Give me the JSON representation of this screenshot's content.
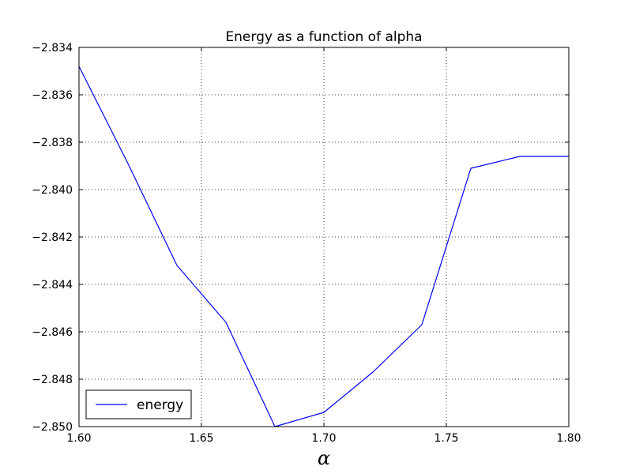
{
  "chart_data": {
    "type": "line",
    "title": "Energy as a function of alpha",
    "xlabel": "α",
    "ylabel": "",
    "xlim": [
      1.6,
      1.8
    ],
    "ylim": [
      -2.85,
      -2.834
    ],
    "xticks": [
      "1.60",
      "1.65",
      "1.70",
      "1.75",
      "1.80"
    ],
    "yticks": [
      "−2.850",
      "−2.848",
      "−2.846",
      "−2.844",
      "−2.842",
      "−2.840",
      "−2.838",
      "−2.836",
      "−2.834"
    ],
    "grid": true,
    "legend_position": "lower-left",
    "series": [
      {
        "name": "energy",
        "color": "#0000ff",
        "x": [
          1.6,
          1.62,
          1.64,
          1.66,
          1.68,
          1.7,
          1.72,
          1.74,
          1.76,
          1.78,
          1.8
        ],
        "y": [
          -2.8348,
          -2.8389,
          -2.8432,
          -2.8456,
          -2.85,
          -2.8494,
          -2.8477,
          -2.8457,
          -2.8391,
          -2.8386,
          -2.8386
        ]
      }
    ]
  }
}
